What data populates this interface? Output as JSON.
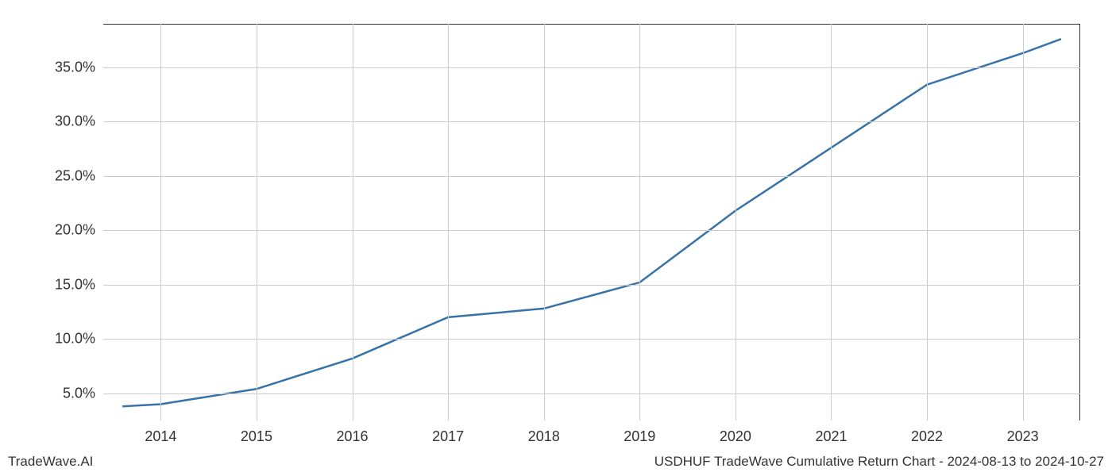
{
  "chart": {
    "type": "line",
    "x_values": [
      2013.6,
      2014,
      2015,
      2016,
      2017,
      2018,
      2019,
      2020,
      2021,
      2022,
      2023,
      2023.4
    ],
    "y_values": [
      3.8,
      4.0,
      5.4,
      8.2,
      12.0,
      12.8,
      15.2,
      21.8,
      27.6,
      33.4,
      36.3,
      37.6
    ],
    "x_ticks": [
      2014,
      2015,
      2016,
      2017,
      2018,
      2019,
      2020,
      2021,
      2022,
      2023
    ],
    "x_tick_labels": [
      "2014",
      "2015",
      "2016",
      "2017",
      "2018",
      "2019",
      "2020",
      "2021",
      "2022",
      "2023"
    ],
    "y_ticks": [
      5,
      10,
      15,
      20,
      25,
      30,
      35
    ],
    "y_tick_labels": [
      "5.0%",
      "10.0%",
      "15.0%",
      "20.0%",
      "25.0%",
      "30.0%",
      "35.0%"
    ],
    "xlim": [
      2013.4,
      2023.6
    ],
    "ylim": [
      2.5,
      39
    ],
    "line_color": "#3773a8",
    "line_width": 2.5,
    "grid_color": "#cccccc",
    "background_color": "#ffffff",
    "axis_color": "#333333",
    "tick_fontsize": 18,
    "footer_fontsize": 17
  },
  "footer": {
    "left": "TradeWave.AI",
    "right": "USDHUF TradeWave Cumulative Return Chart - 2024-08-13 to 2024-10-27"
  }
}
